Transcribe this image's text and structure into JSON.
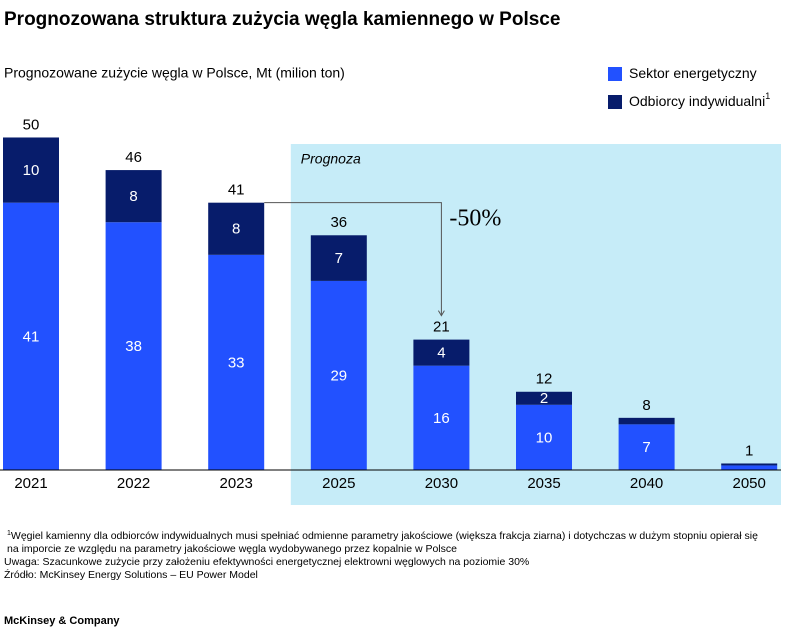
{
  "chart_data": {
    "type": "stacked_bar",
    "title": "Prognozowana struktura zużycia węgla kamiennego w Polsce",
    "subtitle": "Prognozowane zużycie węgla w Polsce, Mt (milion ton)",
    "categories": [
      "2021",
      "2022",
      "2023",
      "2025",
      "2030",
      "2035",
      "2040",
      "2050"
    ],
    "series": [
      {
        "name": "Sektor energetyczny",
        "color": "#2251ff",
        "values": [
          41,
          38,
          33,
          29,
          16,
          10,
          7,
          0.7
        ]
      },
      {
        "name": "Odbiorcy indywidualni",
        "name_note": "1",
        "color": "#071c6b",
        "values": [
          10,
          8,
          8,
          7,
          4,
          2,
          1,
          0.3
        ]
      }
    ],
    "totals": [
      50,
      46,
      41,
      36,
      21,
      12,
      8,
      1
    ],
    "ylim": [
      0,
      50
    ],
    "forecast_label": "Prognoza",
    "change_annotation": "-50%",
    "footnote_marker": "1",
    "footnotes": [
      "Węgiel kamienny dla odbiorców indywidualnych musi spełniać odmienne parametry jakościowe (większa frakcja ziarna) i dotychczas w dużym stopniu opierał się",
      "na imporcie ze względu na parametry jakościowe węgla wydobywanego przez kopalnie w Polsce",
      "Uwaga: Szacunkowe zużycie przy założeniu efektywności energetycznej elektrowni węglowych na poziomie 30%",
      "Źródło: McKinsey Energy Solutions – EU Power Model"
    ],
    "brand": "McKinsey & Company"
  }
}
